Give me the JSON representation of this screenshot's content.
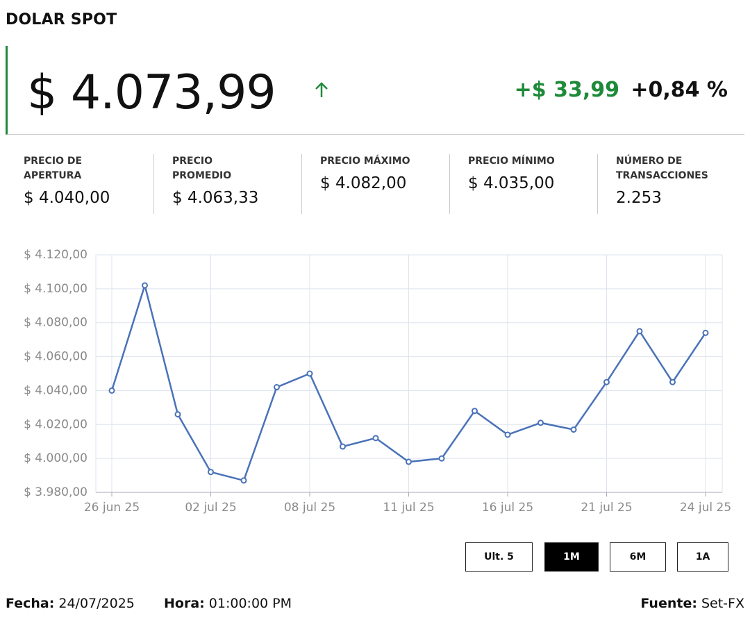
{
  "header": {
    "title": "DOLAR SPOT",
    "price": "$ 4.073,99",
    "change": "+$ 33,99",
    "change_pct": "+0,84 %"
  },
  "stats": [
    {
      "label": "PRECIO DE APERTURA",
      "value": "$ 4.040,00"
    },
    {
      "label": "PRECIO PROMEDIO",
      "value": "$ 4.063,33"
    },
    {
      "label": "PRECIO MÁXIMO",
      "value": "$ 4.082,00"
    },
    {
      "label": "PRECIO MÍNIMO",
      "value": "$ 4.035,00"
    },
    {
      "label": "NÚMERO DE TRANSACCIONES",
      "value": "2.253"
    }
  ],
  "chart_data": {
    "type": "line",
    "categories": [
      "26 jun 25",
      null,
      null,
      "02 jul 25",
      null,
      null,
      "08 jul 25",
      null,
      null,
      "11 jul 25",
      null,
      null,
      "16 jul 25",
      null,
      null,
      "21 jul 25",
      null,
      null,
      "24 jul 25"
    ],
    "series": [
      {
        "name": "Dolar Spot",
        "color": "#4a72b8",
        "values": [
          4040,
          4102,
          4026,
          3992,
          3987,
          4042,
          4050,
          4007,
          4012,
          3998,
          4000,
          4028,
          4014,
          4021,
          4017,
          4045,
          4075,
          4045,
          4074
        ]
      }
    ],
    "ylim": [
      3980,
      4120
    ],
    "yticks": [
      {
        "value": 3980,
        "label": "$ 3.980,00"
      },
      {
        "value": 4000,
        "label": "$ 4.000,00"
      },
      {
        "value": 4020,
        "label": "$ 4.020,00"
      },
      {
        "value": 4040,
        "label": "$ 4.040,00"
      },
      {
        "value": 4060,
        "label": "$ 4.060,00"
      },
      {
        "value": 4080,
        "label": "$ 4.080,00"
      },
      {
        "value": 4100,
        "label": "$ 4.100,00"
      },
      {
        "value": 4120,
        "label": "$ 4.120,00"
      }
    ],
    "grid": true
  },
  "buttons": [
    {
      "label": "Ult. 5",
      "active": false
    },
    {
      "label": "1M",
      "active": true
    },
    {
      "label": "6M",
      "active": false
    },
    {
      "label": "1A",
      "active": false
    }
  ],
  "footer": {
    "date_label": "Fecha:",
    "date": "24/07/2025",
    "time_label": "Hora:",
    "time": "01:00:00 PM",
    "source_label": "Fuente:",
    "source": "Set-FX"
  }
}
